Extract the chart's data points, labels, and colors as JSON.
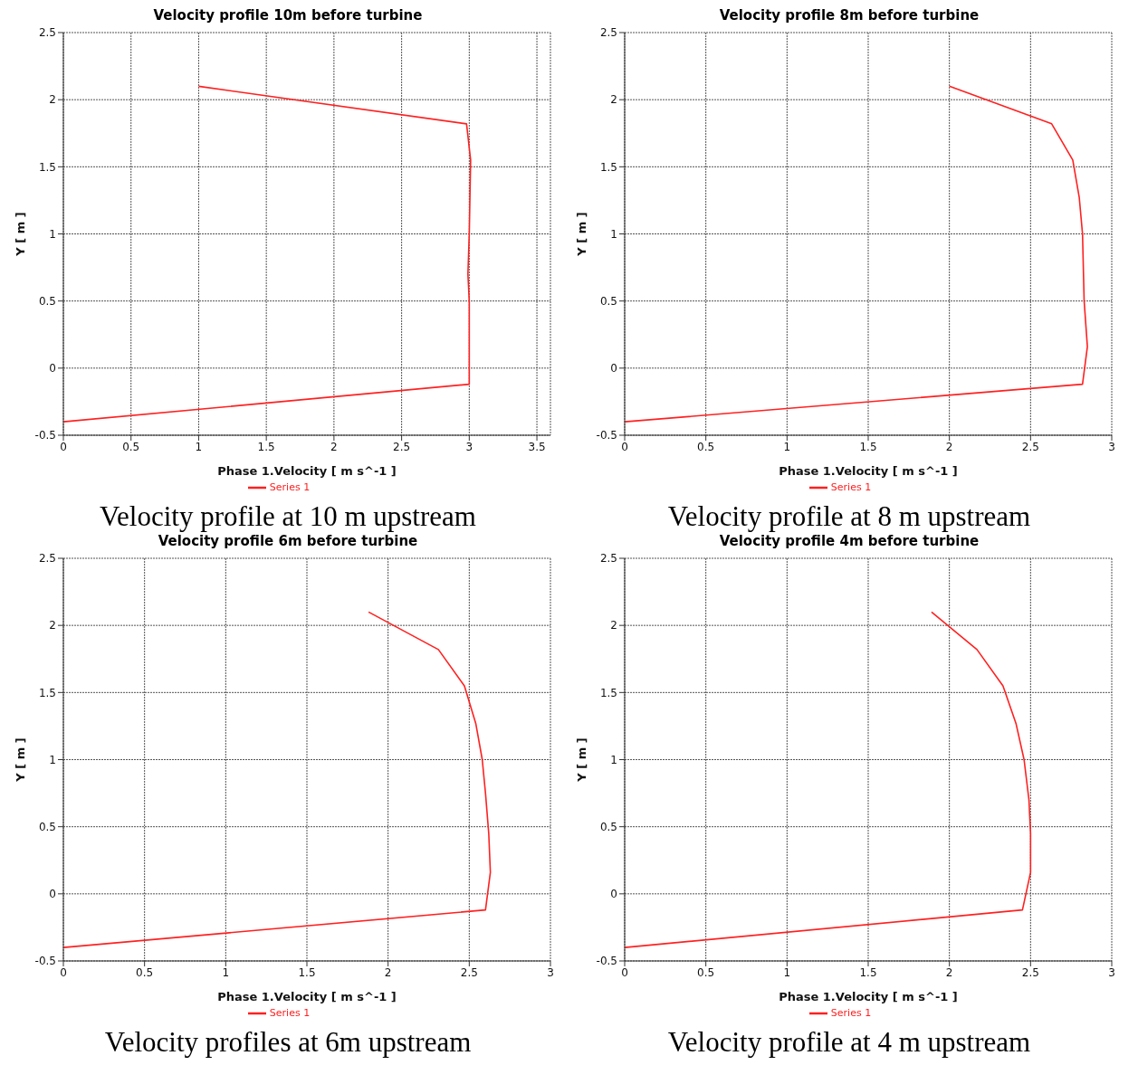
{
  "chart_data": [
    {
      "type": "line",
      "title": "Velocity profile 10m before turbine",
      "xlabel": "Phase 1.Velocity [ m s^-1 ]",
      "ylabel": "Y [ m ]",
      "xlim": [
        0,
        3.6
      ],
      "xticks": [
        0,
        0.5,
        1,
        1.5,
        2,
        2.5,
        3,
        3.5
      ],
      "ylim": [
        -0.5,
        2.5
      ],
      "yticks": [
        -0.5,
        0,
        0.5,
        1,
        1.5,
        2,
        2.5
      ],
      "grid": true,
      "legend": "bottom",
      "annotations": [
        "Velocity profile at 10 m upstream"
      ],
      "series": [
        {
          "name": "Series 1",
          "color": "#ff2020",
          "x": [
            0,
            3.0,
            3.0,
            2.99,
            3.0,
            3.01,
            2.98,
            1.0
          ],
          "values": [
            -0.4,
            -0.12,
            0.5,
            0.7,
            1.0,
            1.55,
            1.82,
            2.1
          ]
        }
      ]
    },
    {
      "type": "line",
      "title": "Velocity profile 8m before turbine",
      "xlabel": "Phase 1.Velocity [ m s^-1 ]",
      "ylabel": "Y [ m ]",
      "xlim": [
        0,
        3
      ],
      "xticks": [
        0,
        0.5,
        1,
        1.5,
        2,
        2.5,
        3
      ],
      "ylim": [
        -0.5,
        2.5
      ],
      "yticks": [
        -0.5,
        0,
        0.5,
        1,
        1.5,
        2,
        2.5
      ],
      "grid": true,
      "legend": "bottom",
      "annotations": [
        "Velocity profile at 8 m upstream"
      ],
      "series": [
        {
          "name": "Series 1",
          "color": "#ff2020",
          "x": [
            0,
            2.82,
            2.85,
            2.83,
            2.82,
            2.8,
            2.76,
            2.63,
            2.0
          ],
          "values": [
            -0.4,
            -0.12,
            0.16,
            0.5,
            1.0,
            1.27,
            1.55,
            1.82,
            2.1
          ]
        }
      ]
    },
    {
      "type": "line",
      "title": "Velocity profile 6m before turbine",
      "xlabel": "Phase 1.Velocity [ m s^-1 ]",
      "ylabel": "Y [ m ]",
      "xlim": [
        0,
        3
      ],
      "xticks": [
        0,
        0.5,
        1,
        1.5,
        2,
        2.5,
        3
      ],
      "ylim": [
        -0.5,
        2.5
      ],
      "yticks": [
        -0.5,
        0,
        0.5,
        1,
        1.5,
        2,
        2.5
      ],
      "grid": true,
      "legend": "bottom",
      "annotations": [
        "Velocity profiles at 6m upstream"
      ],
      "series": [
        {
          "name": "Series 1",
          "color": "#ff2020",
          "x": [
            0,
            2.6,
            2.63,
            2.62,
            2.6,
            2.58,
            2.54,
            2.47,
            2.31,
            1.88
          ],
          "values": [
            -0.4,
            -0.12,
            0.16,
            0.45,
            0.75,
            1.0,
            1.27,
            1.55,
            1.82,
            2.1
          ]
        }
      ]
    },
    {
      "type": "line",
      "title": "Velocity profile 4m before turbine",
      "xlabel": "Phase 1.Velocity [ m s^-1 ]",
      "ylabel": "Y [ m ]",
      "xlim": [
        0,
        3
      ],
      "xticks": [
        0,
        0.5,
        1,
        1.5,
        2,
        2.5,
        3
      ],
      "ylim": [
        -0.5,
        2.5
      ],
      "yticks": [
        -0.5,
        0,
        0.5,
        1,
        1.5,
        2,
        2.5
      ],
      "grid": true,
      "legend": "bottom",
      "annotations": [
        "Velocity profile at 4 m upstream"
      ],
      "series": [
        {
          "name": "Series 1",
          "color": "#ff2020",
          "x": [
            0,
            2.45,
            2.5,
            2.5,
            2.49,
            2.46,
            2.41,
            2.33,
            2.17,
            1.89
          ],
          "values": [
            -0.4,
            -0.12,
            0.16,
            0.45,
            0.7,
            1.0,
            1.27,
            1.55,
            1.82,
            2.1
          ]
        }
      ]
    }
  ]
}
